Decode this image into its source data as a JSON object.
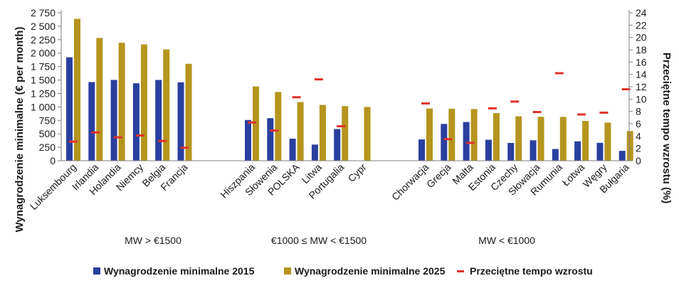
{
  "chart_data": {
    "type": "bar",
    "categories": [
      "Luksembourg",
      "Irlandia",
      "Holandia",
      "Niemcy",
      "Belgia",
      "Francja",
      "Hiszpania",
      "Słowenia",
      "POLSKA",
      "Litwa",
      "Portugalia",
      "Cypr",
      "Chorwacja",
      "Grecja",
      "Malta",
      "Estonia",
      "Czechy",
      "Słowacja",
      "Rumunia",
      "Łotwa",
      "Węgry",
      "Bułgaria"
    ],
    "category_groups": [
      {
        "label": "MW > €1500",
        "count": 6
      },
      {
        "label": "€1000 ≤ MW < €1500",
        "count": 6
      },
      {
        "label": "MW < €1000",
        "count": 10
      }
    ],
    "series": [
      {
        "name": "Wynagrodzenie minimalne 2015",
        "color": "#2a3f9e",
        "axis": "left",
        "values": [
          1923,
          1462,
          1502,
          1440,
          1502,
          1458,
          757,
          791,
          410,
          300,
          589,
          null,
          396,
          684,
          720,
          390,
          331,
          380,
          218,
          360,
          333,
          184
        ]
      },
      {
        "name": "Wynagrodzenie minimalne 2025",
        "color": "#b5951e",
        "axis": "left",
        "values": [
          2638,
          2282,
          2193,
          2161,
          2070,
          1802,
          1381,
          1278,
          1091,
          1038,
          1015,
          1000,
          970,
          968,
          961,
          886,
          826,
          816,
          814,
          740,
          707,
          551
        ]
      },
      {
        "name": "Przeciętne tempo wzrostu",
        "color": "#e0312c",
        "axis": "right",
        "marker": "dash",
        "values": [
          3.1,
          4.6,
          3.8,
          4.1,
          3.2,
          2.1,
          6.2,
          4.9,
          10.3,
          13.2,
          5.6,
          null,
          9.3,
          3.5,
          2.9,
          8.5,
          9.6,
          7.9,
          14.2,
          7.5,
          7.8,
          11.6
        ]
      }
    ],
    "ylabel": "Wynagrodzenie minimalne (€ per month)",
    "ylim": [
      0,
      2750
    ],
    "yticks": [
      "0",
      "250",
      "500",
      "750",
      "1 000",
      "1 250",
      "1 500",
      "1 750",
      "2 000",
      "2 250",
      "2 500",
      "2 750"
    ],
    "y2label": "Przeciętne tempo wzrostu (%)",
    "y2lim": [
      0,
      24
    ],
    "y2ticks": [
      "0",
      "2",
      "4",
      "6",
      "8",
      "10",
      "12",
      "14",
      "16",
      "18",
      "20",
      "22",
      "24"
    ],
    "grid": false,
    "legend": "bottom"
  }
}
